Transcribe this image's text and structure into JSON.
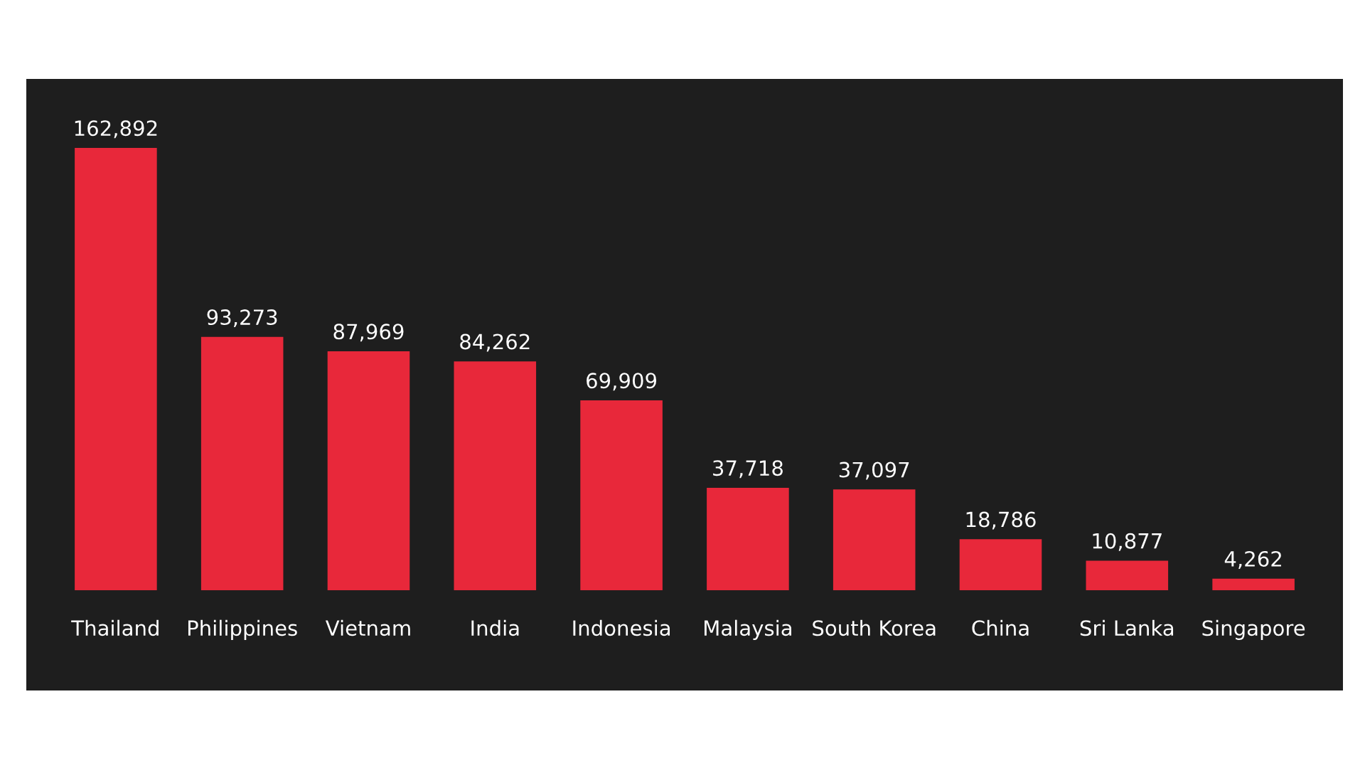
{
  "chart_data": {
    "type": "bar",
    "categories": [
      "Thailand",
      "Philippines",
      "Vietnam",
      "India",
      "Indonesia",
      "Malaysia",
      "South Korea",
      "China",
      "Sri Lanka",
      "Singapore"
    ],
    "values": [
      162892,
      93273,
      87969,
      84262,
      69909,
      37718,
      37097,
      18786,
      10877,
      4262
    ],
    "color": "#e8283a",
    "value_labels": [
      "162,892",
      "93,273",
      "87,969",
      "84,262",
      "69,909",
      "37,718",
      "37,097",
      "18,786",
      "10,877",
      "4,262"
    ],
    "grid": false,
    "legend": false
  }
}
